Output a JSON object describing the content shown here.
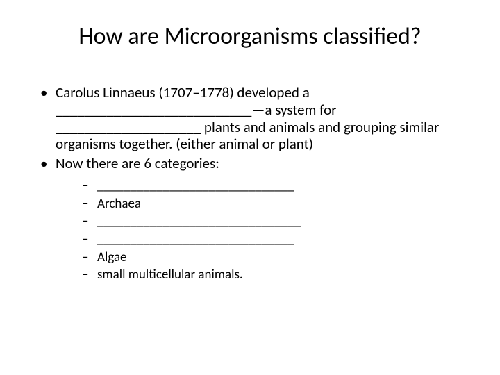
{
  "title": "How are Microorganisms classified?",
  "bullets": [
    "Carolus Linnaeus (1707–1778) developed a ___________________________—a system for ____________________ plants and animals and grouping similar organisms together.  (either animal or plant)",
    "Now there are 6 categories:"
  ],
  "subitems": [
    "______________________________",
    "Archaea",
    "_______________________________",
    "______________________________",
    "Algae",
    "small multicellular animals."
  ],
  "colors": {
    "background": "#ffffff",
    "text": "#000000"
  },
  "typography": {
    "title_fontsize": 34,
    "body_fontsize": 21,
    "sub_fontsize": 19,
    "font_family": "Calibri"
  }
}
